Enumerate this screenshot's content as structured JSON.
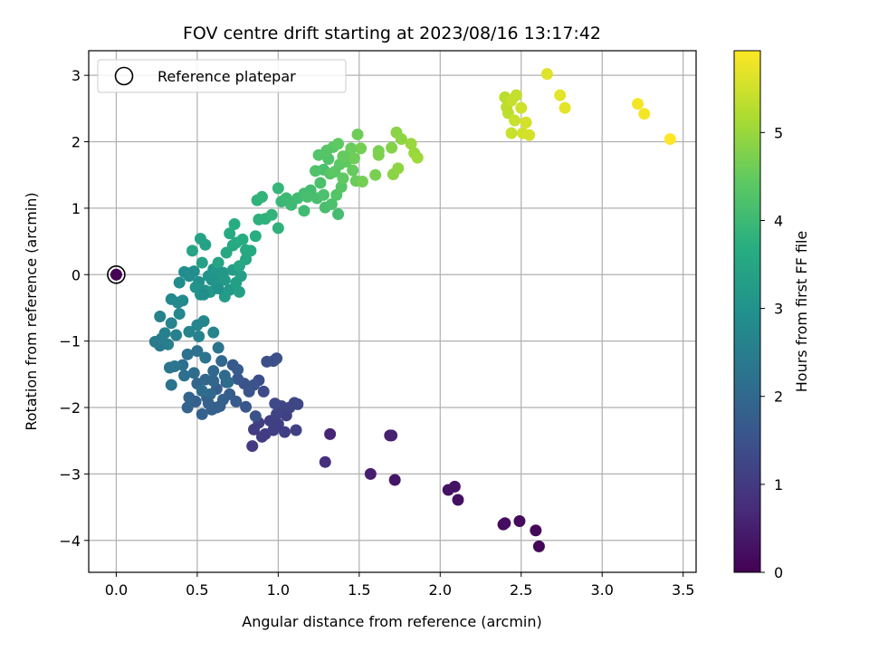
{
  "chart_data": {
    "type": "scatter",
    "title": "FOV centre drift starting at 2023/08/16 13:17:42",
    "xlabel": "Angular distance from reference (arcmin)",
    "ylabel": "Rotation from reference (arcmin)",
    "xlim": [
      -0.17,
      3.58
    ],
    "ylim": [
      -4.48,
      3.37
    ],
    "xticks": [
      0.0,
      0.5,
      1.0,
      1.5,
      2.0,
      2.5,
      3.0,
      3.5
    ],
    "xtick_labels": [
      "0.0",
      "0.5",
      "1.0",
      "1.5",
      "2.0",
      "2.5",
      "3.0",
      "3.5"
    ],
    "yticks": [
      -4,
      -3,
      -2,
      -1,
      0,
      1,
      2,
      3
    ],
    "ytick_labels": [
      "−4",
      "−3",
      "−2",
      "−1",
      "0",
      "1",
      "2",
      "3"
    ],
    "grid": true,
    "colormap": "viridis",
    "colorbar": {
      "label": "Hours from first FF file",
      "range": [
        0,
        5.93
      ],
      "ticks": [
        0,
        1,
        2,
        3,
        4,
        5
      ],
      "tick_labels": [
        "0",
        "1",
        "2",
        "3",
        "4",
        "5"
      ]
    },
    "legend": {
      "position": "top-left",
      "entries": [
        {
          "label": "Reference platepar",
          "marker": "open-circle"
        }
      ]
    },
    "reference_point": {
      "x": 0.0,
      "y": 0.0,
      "hours": 0.0
    },
    "points": [
      [
        2.61,
        -4.09,
        0.1
      ],
      [
        2.59,
        -3.85,
        0.1
      ],
      [
        2.49,
        -3.71,
        0.15
      ],
      [
        2.39,
        -3.76,
        0.15
      ],
      [
        2.4,
        -3.74,
        0.2
      ],
      [
        2.11,
        -3.39,
        0.25
      ],
      [
        2.09,
        -3.19,
        0.3
      ],
      [
        2.05,
        -3.24,
        0.3
      ],
      [
        1.72,
        -3.09,
        0.35
      ],
      [
        1.57,
        -3.0,
        0.5
      ],
      [
        1.69,
        -2.42,
        0.5
      ],
      [
        1.7,
        -2.42,
        0.55
      ],
      [
        1.32,
        -2.4,
        0.6
      ],
      [
        1.29,
        -2.82,
        0.8
      ],
      [
        0.84,
        -2.58,
        1.0
      ],
      [
        0.85,
        -2.33,
        1.05
      ],
      [
        0.92,
        -2.4,
        1.05
      ],
      [
        0.95,
        -2.2,
        1.1
      ],
      [
        1.0,
        -2.25,
        1.1
      ],
      [
        1.05,
        -2.12,
        1.15
      ],
      [
        1.07,
        -2.0,
        1.2
      ],
      [
        1.1,
        -1.93,
        1.25
      ],
      [
        1.12,
        -1.95,
        1.25
      ],
      [
        1.11,
        -2.34,
        1.15
      ],
      [
        1.04,
        -2.37,
        1.1
      ],
      [
        0.97,
        -2.34,
        1.1
      ],
      [
        0.9,
        -2.44,
        1.05
      ],
      [
        0.88,
        -2.23,
        1.1
      ],
      [
        0.99,
        -2.1,
        1.2
      ],
      [
        1.02,
        -1.98,
        1.2
      ],
      [
        0.98,
        -1.94,
        1.3
      ],
      [
        0.91,
        -1.76,
        1.35
      ],
      [
        0.88,
        -1.59,
        1.4
      ],
      [
        0.93,
        -1.31,
        1.4
      ],
      [
        0.97,
        -1.3,
        1.45
      ],
      [
        0.99,
        -1.26,
        1.45
      ],
      [
        0.85,
        -1.66,
        1.5
      ],
      [
        0.79,
        -1.64,
        1.5
      ],
      [
        0.82,
        -1.76,
        1.55
      ],
      [
        0.86,
        -2.13,
        1.5
      ],
      [
        0.8,
        -1.99,
        1.6
      ],
      [
        0.75,
        -1.57,
        1.6
      ],
      [
        0.72,
        -1.36,
        1.65
      ],
      [
        0.75,
        -1.43,
        1.7
      ],
      [
        0.68,
        -1.62,
        1.7
      ],
      [
        0.62,
        -1.72,
        1.75
      ],
      [
        0.64,
        -1.98,
        1.75
      ],
      [
        0.59,
        -2.03,
        1.8
      ],
      [
        0.56,
        -1.85,
        1.8
      ],
      [
        0.53,
        -2.1,
        1.85
      ],
      [
        0.49,
        -1.91,
        1.85
      ],
      [
        0.44,
        -2.0,
        1.9
      ],
      [
        0.45,
        -1.85,
        1.9
      ],
      [
        0.5,
        -1.64,
        1.95
      ],
      [
        0.55,
        -1.58,
        1.95
      ],
      [
        0.6,
        -1.45,
        2.0
      ],
      [
        0.65,
        -1.3,
        2.0
      ],
      [
        0.67,
        -1.52,
        2.05
      ],
      [
        0.58,
        -1.8,
        2.05
      ],
      [
        0.53,
        -1.75,
        2.1
      ],
      [
        0.48,
        -1.48,
        2.1
      ],
      [
        0.42,
        -1.52,
        2.15
      ],
      [
        0.41,
        -1.36,
        2.15
      ],
      [
        0.44,
        -1.2,
        2.2
      ],
      [
        0.5,
        -1.15,
        2.2
      ],
      [
        0.55,
        -1.25,
        2.25
      ],
      [
        0.63,
        -1.1,
        2.25
      ],
      [
        0.69,
        -1.62,
        2.1
      ],
      [
        0.62,
        -2.0,
        1.8
      ],
      [
        0.57,
        -1.94,
        1.85
      ],
      [
        0.66,
        -1.88,
        1.8
      ],
      [
        0.6,
        -1.6,
        1.95
      ],
      [
        0.7,
        -1.8,
        1.75
      ],
      [
        0.74,
        -1.91,
        1.7
      ],
      [
        0.36,
        -1.38,
        2.3
      ],
      [
        0.33,
        -1.4,
        2.3
      ],
      [
        0.34,
        -1.66,
        2.25
      ],
      [
        0.27,
        -1.07,
        2.4
      ],
      [
        0.24,
        -1.01,
        2.45
      ],
      [
        0.28,
        -0.96,
        2.45
      ],
      [
        0.32,
        -1.05,
        2.5
      ],
      [
        0.37,
        -0.91,
        2.55
      ],
      [
        0.3,
        -0.88,
        2.55
      ],
      [
        0.27,
        -0.63,
        2.6
      ],
      [
        0.34,
        -0.73,
        2.65
      ],
      [
        0.39,
        -0.59,
        2.7
      ],
      [
        0.34,
        -0.37,
        2.75
      ],
      [
        0.38,
        -0.42,
        2.75
      ],
      [
        0.41,
        -0.39,
        2.8
      ],
      [
        0.45,
        -0.86,
        2.65
      ],
      [
        0.51,
        -0.93,
        2.6
      ],
      [
        0.54,
        -0.7,
        2.7
      ],
      [
        0.6,
        -0.87,
        2.65
      ],
      [
        0.5,
        -0.76,
        2.7
      ],
      [
        0.39,
        -0.12,
        2.85
      ],
      [
        0.42,
        0.04,
        2.9
      ],
      [
        0.45,
        -0.02,
        2.9
      ],
      [
        0.48,
        0.05,
        2.95
      ],
      [
        0.51,
        -0.11,
        2.95
      ],
      [
        0.55,
        -0.24,
        3.0
      ],
      [
        0.52,
        -0.3,
        3.0
      ],
      [
        0.49,
        -0.19,
        3.05
      ],
      [
        0.57,
        -0.02,
        3.05
      ],
      [
        0.6,
        0.08,
        3.1
      ],
      [
        0.62,
        -0.14,
        3.1
      ],
      [
        0.58,
        -0.26,
        3.15
      ],
      [
        0.64,
        0.01,
        3.15
      ],
      [
        0.67,
        -0.08,
        3.2
      ],
      [
        0.7,
        -0.23,
        3.2
      ],
      [
        0.67,
        -0.33,
        3.25
      ],
      [
        0.72,
        0.07,
        3.25
      ],
      [
        0.74,
        -0.12,
        3.3
      ],
      [
        0.77,
        -0.02,
        3.3
      ],
      [
        0.76,
        -0.26,
        3.35
      ],
      [
        0.53,
        0.18,
        3.35
      ],
      [
        0.55,
        0.45,
        3.4
      ],
      [
        0.52,
        0.54,
        3.4
      ],
      [
        0.47,
        0.36,
        3.45
      ],
      [
        0.63,
        0.18,
        3.45
      ],
      [
        0.45,
        0.02,
        2.85
      ],
      [
        0.54,
        -0.3,
        2.9
      ],
      [
        0.63,
        -0.21,
        3.0
      ],
      [
        0.59,
        -0.08,
        3.05
      ],
      [
        0.66,
        0.03,
        3.15
      ],
      [
        0.68,
        0.33,
        3.55
      ],
      [
        0.72,
        0.44,
        3.55
      ],
      [
        0.7,
        0.62,
        3.6
      ],
      [
        0.74,
        0.48,
        3.6
      ],
      [
        0.73,
        0.76,
        3.65
      ],
      [
        0.78,
        0.53,
        3.65
      ],
      [
        0.8,
        0.37,
        3.6
      ],
      [
        0.83,
        0.36,
        3.6
      ],
      [
        0.8,
        0.23,
        3.5
      ],
      [
        0.76,
        0.13,
        3.5
      ],
      [
        0.86,
        0.58,
        3.7
      ],
      [
        0.88,
        0.83,
        3.75
      ],
      [
        0.87,
        1.12,
        3.8
      ],
      [
        0.9,
        1.17,
        3.85
      ],
      [
        0.92,
        0.84,
        3.8
      ],
      [
        0.96,
        0.9,
        3.85
      ],
      [
        1.0,
        1.3,
        3.9
      ],
      [
        1.02,
        1.1,
        3.95
      ],
      [
        1.05,
        1.15,
        4.0
      ],
      [
        1.08,
        1.05,
        4.0
      ],
      [
        1.0,
        0.7,
        3.8
      ],
      [
        1.12,
        1.15,
        4.05
      ],
      [
        1.16,
        1.22,
        4.1
      ],
      [
        1.16,
        0.96,
        4.05
      ],
      [
        1.2,
        1.27,
        4.1
      ],
      [
        1.24,
        1.15,
        4.15
      ],
      [
        1.26,
        1.38,
        4.2
      ],
      [
        1.28,
        1.58,
        4.2
      ],
      [
        1.31,
        1.74,
        4.25
      ],
      [
        1.29,
        1.01,
        4.15
      ],
      [
        1.33,
        1.06,
        4.2
      ],
      [
        1.37,
        0.91,
        4.1
      ],
      [
        1.36,
        1.2,
        4.3
      ],
      [
        1.39,
        1.32,
        4.35
      ],
      [
        1.32,
        1.52,
        4.35
      ],
      [
        1.35,
        1.55,
        4.4
      ],
      [
        1.38,
        1.66,
        4.4
      ],
      [
        1.4,
        1.45,
        4.45
      ],
      [
        1.42,
        1.7,
        4.45
      ],
      [
        1.44,
        1.81,
        4.5
      ],
      [
        1.46,
        1.57,
        4.5
      ],
      [
        1.48,
        1.41,
        4.55
      ],
      [
        1.45,
        1.9,
        4.55
      ],
      [
        1.47,
        1.75,
        4.6
      ],
      [
        1.49,
        2.11,
        4.6
      ],
      [
        1.51,
        1.9,
        4.65
      ],
      [
        1.52,
        1.4,
        4.65
      ],
      [
        1.34,
        1.92,
        4.4
      ],
      [
        1.3,
        1.87,
        4.35
      ],
      [
        1.37,
        1.97,
        4.45
      ],
      [
        1.4,
        1.78,
        4.5
      ],
      [
        1.25,
        1.8,
        4.3
      ],
      [
        1.23,
        1.56,
        4.25
      ],
      [
        1.28,
        1.2,
        4.2
      ],
      [
        1.18,
        1.17,
        4.15
      ],
      [
        1.62,
        1.86,
        4.7
      ],
      [
        1.62,
        1.8,
        4.75
      ],
      [
        1.6,
        1.5,
        4.7
      ],
      [
        1.7,
        1.91,
        4.8
      ],
      [
        1.71,
        1.51,
        4.85
      ],
      [
        1.73,
        2.14,
        4.85
      ],
      [
        1.74,
        1.6,
        4.9
      ],
      [
        1.76,
        2.04,
        4.9
      ],
      [
        1.82,
        1.97,
        5.0
      ],
      [
        1.84,
        1.83,
        5.0
      ],
      [
        1.86,
        1.76,
        5.05
      ],
      [
        2.4,
        2.67,
        5.3
      ],
      [
        2.41,
        2.52,
        5.35
      ],
      [
        2.42,
        2.43,
        5.35
      ],
      [
        2.44,
        2.62,
        5.4
      ],
      [
        2.47,
        2.7,
        5.4
      ],
      [
        2.46,
        2.32,
        5.45
      ],
      [
        2.44,
        2.13,
        5.45
      ],
      [
        2.5,
        2.51,
        5.5
      ],
      [
        2.51,
        2.13,
        5.5
      ],
      [
        2.53,
        2.29,
        5.55
      ],
      [
        2.55,
        2.1,
        5.55
      ],
      [
        2.66,
        3.02,
        5.65
      ],
      [
        2.74,
        2.7,
        5.7
      ],
      [
        2.77,
        2.51,
        5.7
      ],
      [
        3.22,
        2.57,
        5.85
      ],
      [
        3.26,
        2.42,
        5.85
      ],
      [
        3.42,
        2.04,
        5.93
      ]
    ]
  }
}
